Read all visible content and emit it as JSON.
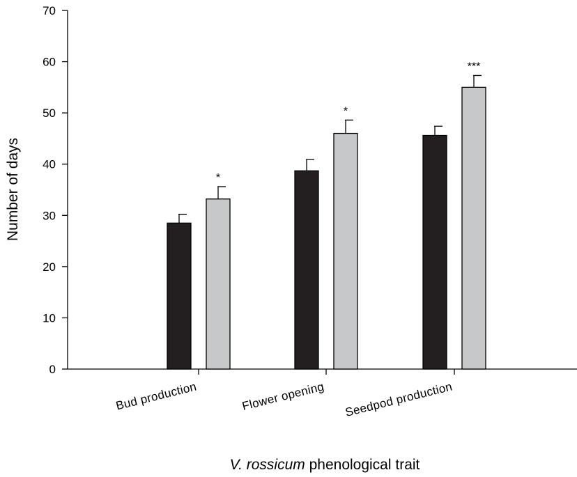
{
  "chart_data": {
    "type": "bar",
    "title": "",
    "xlabel_italic": "V. rossicum",
    "xlabel_rest": " phenological trait",
    "ylabel": "Number of days",
    "ylim": [
      0,
      70
    ],
    "yticks": [
      0,
      10,
      20,
      30,
      40,
      50,
      60,
      70
    ],
    "categories": [
      "Bud production",
      "Flower opening",
      "Seedpod production"
    ],
    "series": [
      {
        "color": "#231f20",
        "values": [
          28.5,
          38.7,
          45.6
        ],
        "errors": [
          1.7,
          2.2,
          1.8
        ],
        "significance": [
          "",
          "",
          ""
        ]
      },
      {
        "color": "#c7c8ca",
        "values": [
          33.2,
          46.0,
          55.0
        ],
        "errors": [
          2.4,
          2.6,
          2.3
        ],
        "significance": [
          "*",
          "*",
          "***"
        ]
      }
    ],
    "grid": false,
    "legend": "none"
  }
}
